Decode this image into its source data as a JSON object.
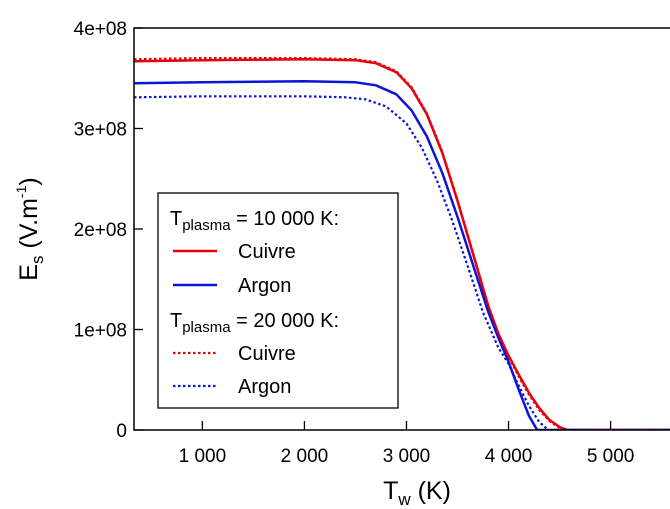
{
  "chart_data": {
    "type": "line",
    "xlabel": {
      "main": "T",
      "sub": "w",
      "rest": " (K)"
    },
    "ylabel": {
      "main": "E",
      "sub": "s",
      "rest1": " (V.m",
      "sup": "-1",
      "rest2": ")"
    },
    "xlim": [
      330,
      5680
    ],
    "ylim": [
      0,
      400000000
    ],
    "xticks": [
      {
        "value": 1000,
        "label": "1 000"
      },
      {
        "value": 2000,
        "label": "2 000"
      },
      {
        "value": 3000,
        "label": "3 000"
      },
      {
        "value": 4000,
        "label": "4 000"
      },
      {
        "value": 5000,
        "label": "5 000"
      }
    ],
    "yticks": [
      {
        "value": 0,
        "label": "0"
      },
      {
        "value": 100000000,
        "label": "1e+08"
      },
      {
        "value": 200000000,
        "label": "2e+08"
      },
      {
        "value": 300000000,
        "label": "3e+08"
      },
      {
        "value": 400000000,
        "label": "4e+08"
      }
    ],
    "legend": {
      "position": "left-middle",
      "group1": {
        "main": "T",
        "sub": "plasma",
        "rest": " = 10 000 K:"
      },
      "group2": {
        "main": "T",
        "sub": "plasma",
        "rest": " = 20 000 K:"
      },
      "entries": [
        {
          "label": "Cuivre",
          "color": "#e8000b",
          "dash": "solid"
        },
        {
          "label": "Argon",
          "color": "#0a14d8",
          "dash": "solid"
        },
        {
          "label": "Cuivre",
          "color": "#e8000b",
          "dash": "dotted"
        },
        {
          "label": "Argon",
          "color": "#0a14d8",
          "dash": "dotted"
        }
      ]
    },
    "series": [
      {
        "color": "#e8000b",
        "dash": "solid",
        "x": [
          330,
          1000,
          2000,
          2500,
          2700,
          2900,
          3050,
          3200,
          3350,
          3500,
          3650,
          3800,
          3900,
          4000,
          4100,
          4200,
          4300,
          4400,
          4500,
          4580,
          5680
        ],
        "y": [
          367000000,
          368000000,
          369000000,
          368000000,
          365000000,
          356000000,
          340000000,
          314000000,
          276000000,
          228000000,
          176000000,
          124000000,
          96000000,
          74000000,
          55000000,
          37000000,
          22000000,
          10000000,
          3000000,
          0,
          0
        ]
      },
      {
        "color": "#0a14d8",
        "dash": "solid",
        "x": [
          330,
          1000,
          2000,
          2500,
          2700,
          2900,
          3050,
          3200,
          3350,
          3500,
          3650,
          3800,
          3900,
          4000,
          4100,
          4200,
          4280,
          5680
        ],
        "y": [
          345000000,
          346000000,
          347000000,
          346000000,
          343000000,
          334000000,
          318000000,
          292000000,
          256000000,
          212000000,
          165000000,
          118000000,
          92000000,
          68000000,
          40000000,
          14000000,
          0,
          0
        ]
      },
      {
        "color": "#e8000b",
        "dash": "dotted",
        "x": [
          330,
          1000,
          2000,
          2500,
          2700,
          2900,
          3050,
          3200,
          3350,
          3500,
          3650,
          3800,
          3900,
          4000,
          4100,
          4200,
          4300,
          4400,
          4500,
          4570,
          5680
        ],
        "y": [
          369000000,
          370000000,
          370000000,
          369000000,
          366000000,
          357000000,
          341000000,
          315000000,
          277000000,
          229000000,
          177000000,
          124000000,
          96000000,
          73000000,
          53000000,
          35000000,
          20000000,
          9000000,
          2000000,
          0,
          0
        ]
      },
      {
        "color": "#0a14d8",
        "dash": "dotted",
        "x": [
          330,
          1000,
          2000,
          2400,
          2600,
          2800,
          3000,
          3150,
          3300,
          3450,
          3600,
          3750,
          3900,
          4000,
          4100,
          4200,
          4300,
          4390,
          5680
        ],
        "y": [
          331000000,
          332000000,
          332000000,
          331000000,
          329000000,
          322000000,
          305000000,
          281000000,
          248000000,
          208000000,
          163000000,
          117000000,
          82000000,
          66000000,
          44000000,
          24000000,
          8000000,
          0,
          0
        ]
      }
    ]
  }
}
